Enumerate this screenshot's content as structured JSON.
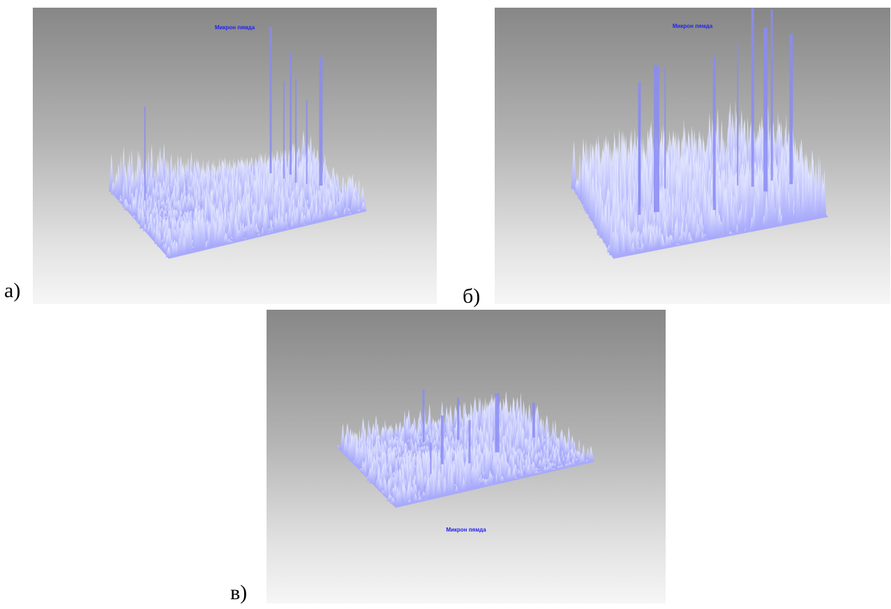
{
  "panels": [
    {
      "id": "a",
      "label": "а)",
      "title": "Микрон пямда"
    },
    {
      "id": "b",
      "label": "б)",
      "title": "Микрон пямда"
    },
    {
      "id": "c",
      "label": "в)",
      "title": "Микрон пямда"
    }
  ],
  "colors": {
    "surface": "#a6a8fb",
    "surface_highlight": "#eef2ff",
    "spike": "#8a8cf2",
    "title_text": "#2222ee",
    "background_top": "#878787",
    "background_bottom": "#f6f6f6"
  }
}
